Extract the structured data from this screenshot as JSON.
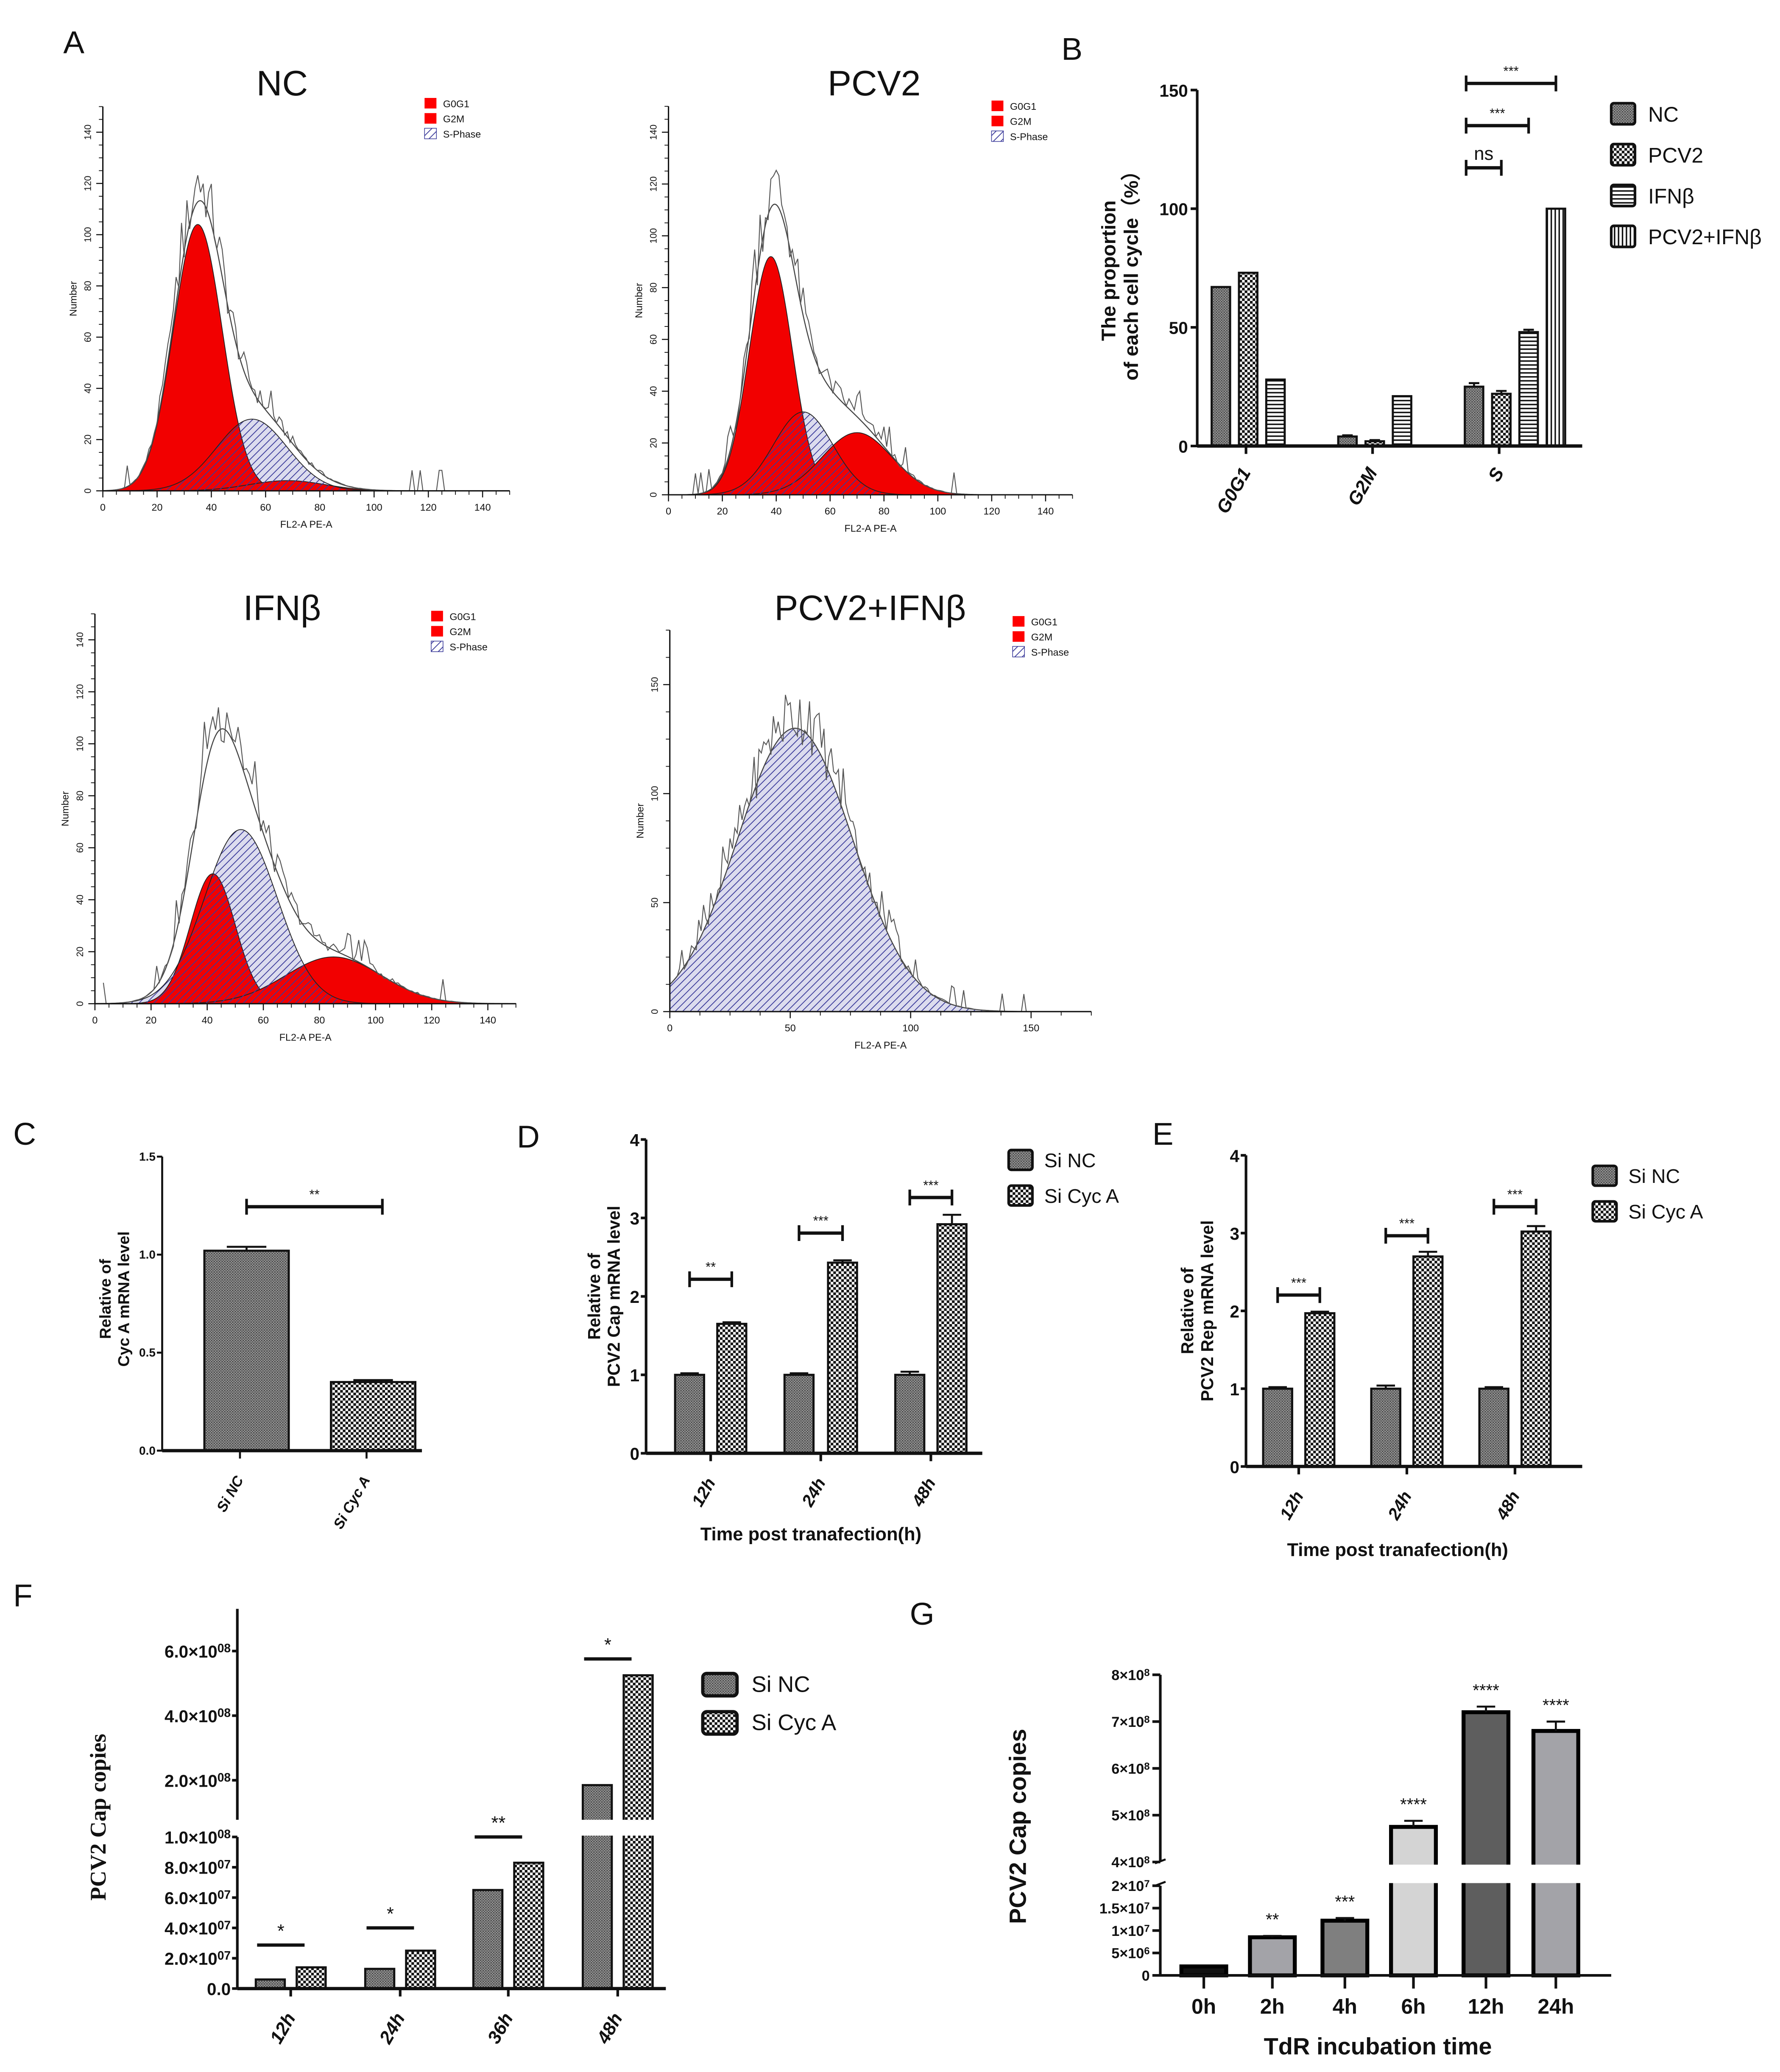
{
  "panel_labels": [
    "A",
    "B",
    "C",
    "D",
    "E",
    "F",
    "G"
  ],
  "chart_data": [
    {
      "id": "A-NC",
      "type": "area",
      "title": "NC",
      "xlabel": "FL2-A PE-A",
      "ylabel": "Number",
      "xlim": [
        0,
        150
      ],
      "ylim": [
        0,
        150
      ],
      "xticks": [
        0,
        20,
        40,
        60,
        80,
        100,
        120,
        140
      ],
      "yticks": [
        0,
        20,
        40,
        60,
        80,
        100,
        120,
        140
      ],
      "legend": [
        {
          "label": "G0G1",
          "fill": "#ff0000"
        },
        {
          "label": "G2M",
          "fill": "#ff0000"
        },
        {
          "label": "S-Phase",
          "fill": "hatch"
        }
      ],
      "components": [
        {
          "name": "S-Phase",
          "mean": 55,
          "sd": 13,
          "peak": 28
        },
        {
          "name": "G0G1",
          "mean": 35,
          "sd": 9,
          "peak": 104
        },
        {
          "name": "G2M",
          "mean": 68,
          "sd": 14,
          "peak": 4
        }
      ]
    },
    {
      "id": "A-PCV2",
      "type": "area",
      "title": "PCV2",
      "xlabel": "FL2-A PE-A",
      "ylabel": "Number",
      "xlim": [
        0,
        150
      ],
      "ylim": [
        0,
        150
      ],
      "xticks": [
        0,
        20,
        40,
        60,
        80,
        100,
        120,
        140
      ],
      "yticks": [
        0,
        20,
        40,
        60,
        80,
        100,
        120,
        140
      ],
      "legend": [
        {
          "label": "G0G1",
          "fill": "#ff0000"
        },
        {
          "label": "G2M",
          "fill": "#ff0000"
        },
        {
          "label": "S-Phase",
          "fill": "hatch"
        }
      ],
      "components": [
        {
          "name": "S-Phase",
          "mean": 50,
          "sd": 11,
          "peak": 32
        },
        {
          "name": "G0G1",
          "mean": 38,
          "sd": 8,
          "peak": 92
        },
        {
          "name": "G2M",
          "mean": 70,
          "sd": 13,
          "peak": 24
        }
      ]
    },
    {
      "id": "A-IFNb",
      "type": "area",
      "title": "IFNβ",
      "xlabel": "FL2-A PE-A",
      "ylabel": "Number",
      "xlim": [
        0,
        150
      ],
      "ylim": [
        0,
        150
      ],
      "xticks": [
        0,
        20,
        40,
        60,
        80,
        100,
        120,
        140
      ],
      "yticks": [
        0,
        20,
        40,
        60,
        80,
        100,
        120,
        140
      ],
      "legend": [
        {
          "label": "G0G1",
          "fill": "#ff0000"
        },
        {
          "label": "G2M",
          "fill": "#ff0000"
        },
        {
          "label": "S-Phase",
          "fill": "hatch"
        }
      ],
      "components": [
        {
          "name": "S-Phase",
          "mean": 52,
          "sd": 13,
          "peak": 67
        },
        {
          "name": "G0G1",
          "mean": 42,
          "sd": 8,
          "peak": 50
        },
        {
          "name": "G2M",
          "mean": 85,
          "sd": 17,
          "peak": 18
        }
      ]
    },
    {
      "id": "A-PCV2-IFNb",
      "type": "area",
      "title": "PCV2+IFNβ",
      "xlabel": "FL2-A PE-A",
      "ylabel": "Number",
      "xlim": [
        0,
        175
      ],
      "ylim": [
        0,
        175
      ],
      "xticks": [
        0,
        50,
        100,
        150
      ],
      "yticks": [
        0,
        50,
        100,
        150
      ],
      "legend": [
        {
          "label": "G0G1",
          "fill": "#ff0000"
        },
        {
          "label": "G2M",
          "fill": "#ff0000"
        },
        {
          "label": "S-Phase",
          "fill": "hatch"
        }
      ],
      "components": [
        {
          "name": "S-Phase",
          "mean": 52,
          "sd": 24,
          "peak": 130
        }
      ]
    },
    {
      "id": "B",
      "type": "bar",
      "categories": [
        "G0G1",
        "G2M",
        "S"
      ],
      "series": [
        {
          "name": "NC",
          "pattern": "dense",
          "values": [
            67,
            4,
            25
          ],
          "errors": [
            0,
            0.5,
            1.5
          ]
        },
        {
          "name": "PCV2",
          "pattern": "checker",
          "values": [
            73,
            2,
            22
          ],
          "errors": [
            0,
            0.5,
            1.2
          ]
        },
        {
          "name": "IFNβ",
          "pattern": "hlines",
          "values": [
            28,
            21,
            48
          ],
          "errors": [
            0,
            0,
            1
          ]
        },
        {
          "name": "PCV2+IFNβ",
          "pattern": "vlines",
          "values": [
            null,
            null,
            100
          ],
          "errors": [
            0,
            0,
            0
          ]
        }
      ],
      "ylabel_lines": [
        "The proportion",
        "of each cell cycle（%）"
      ],
      "ylim": [
        0,
        150
      ],
      "yticks": [
        0,
        50,
        100,
        150
      ],
      "significance": [
        {
          "category": "S",
          "from": "NC",
          "to": "PCV2+IFNβ",
          "label": "***"
        },
        {
          "category": "S",
          "from": "NC",
          "to": "IFNβ",
          "label": "***"
        },
        {
          "category": "S",
          "from": "NC",
          "to": "PCV2",
          "label": "ns"
        }
      ]
    },
    {
      "id": "C",
      "type": "bar",
      "categories": [
        "Si NC",
        "Si Cyc A"
      ],
      "values": [
        1.02,
        0.35
      ],
      "errors": [
        0.02,
        0.01
      ],
      "patterns": [
        "dense",
        "checker"
      ],
      "ylabel_lines": [
        "Relative of",
        "Cyc A mRNA level"
      ],
      "ylim": [
        0,
        1.5
      ],
      "yticks": [
        {
          "v": 0,
          "label": "0.0"
        },
        {
          "v": 0.5,
          "label": "0.5"
        },
        {
          "v": 1,
          "label": "1.0"
        },
        {
          "v": 1.5,
          "label": "1.5"
        }
      ],
      "significance": [
        {
          "label": "**"
        }
      ]
    },
    {
      "id": "D",
      "type": "bar",
      "categories": [
        "12h",
        "24h",
        "48h"
      ],
      "series": [
        {
          "name": "Si NC",
          "pattern": "dense",
          "values": [
            1,
            1,
            1
          ],
          "errors": [
            0.02,
            0.02,
            0.04
          ]
        },
        {
          "name": "Si Cyc A",
          "pattern": "checker",
          "values": [
            1.65,
            2.43,
            2.92
          ],
          "errors": [
            0.02,
            0.03,
            0.12
          ]
        }
      ],
      "significance": [
        "**",
        "***",
        "***"
      ],
      "ylabel_lines": [
        "Relative of",
        "PCV2 Cap mRNA level"
      ],
      "xlabel": "Time post tranafection(h)",
      "ylim": [
        0,
        4
      ],
      "yticks": [
        0,
        1,
        2,
        3,
        4
      ]
    },
    {
      "id": "E",
      "type": "bar",
      "categories": [
        "12h",
        "24h",
        "48h"
      ],
      "series": [
        {
          "name": "Si NC",
          "pattern": "dense",
          "values": [
            1,
            1,
            1
          ],
          "errors": [
            0.02,
            0.04,
            0.02
          ]
        },
        {
          "name": "Si Cyc A",
          "pattern": "checker",
          "values": [
            1.97,
            2.7,
            3.02
          ],
          "errors": [
            0.02,
            0.06,
            0.07
          ]
        }
      ],
      "significance": [
        "***",
        "***",
        "***"
      ],
      "ylabel_lines": [
        "Relative of",
        "PCV2 Rep mRNA level"
      ],
      "xlabel": "Time post tranafection(h)",
      "ylim": [
        0,
        4
      ],
      "yticks": [
        0,
        1,
        2,
        3,
        4
      ]
    },
    {
      "id": "F",
      "type": "bar",
      "categories": [
        "12h",
        "24h",
        "36h",
        "48h"
      ],
      "series": [
        {
          "name": "Si NC",
          "pattern": "dense",
          "values": [
            6000000,
            13000000,
            65000000,
            185000000
          ]
        },
        {
          "name": "Si Cyc A",
          "pattern": "checker",
          "values": [
            14000000,
            25000000,
            83000000,
            525000000
          ]
        }
      ],
      "significance": [
        "*",
        "*",
        "**",
        "*"
      ],
      "ylabel": "PCV2 Cap copies",
      "axis_break": [
        100000000,
        200000000
      ],
      "yticks": [
        {
          "v": 0,
          "label": "0.0",
          "exp": ""
        },
        {
          "v": 20000000,
          "label": "2.0×10",
          "exp": "07"
        },
        {
          "v": 40000000,
          "label": "4.0×10",
          "exp": "07"
        },
        {
          "v": 60000000,
          "label": "6.0×10",
          "exp": "07"
        },
        {
          "v": 80000000,
          "label": "8.0×10",
          "exp": "07"
        },
        {
          "v": 100000000,
          "label": "1.0×10",
          "exp": "08"
        },
        {
          "v": 200000000,
          "label": "2.0×10",
          "exp": "08"
        },
        {
          "v": 400000000,
          "label": "4.0×10",
          "exp": "08"
        },
        {
          "v": 600000000,
          "label": "6.0×10",
          "exp": "08"
        }
      ]
    },
    {
      "id": "G",
      "type": "bar",
      "categories": [
        "0h",
        "2h",
        "4h",
        "6h",
        "12h",
        "24h"
      ],
      "values": [
        2000000,
        8500000,
        12200000,
        475000000,
        720000000,
        680000000
      ],
      "errors": [
        0,
        300000,
        600000,
        13000000,
        12000000,
        20000000
      ],
      "colors": [
        "#111111",
        "#a3a3a8",
        "#7f7f7f",
        "#d4d4d4",
        "#5e5e5e",
        "#a3a3a8"
      ],
      "significance": [
        "",
        "**",
        "***",
        "****",
        "****",
        "****"
      ],
      "ylabel": "PCV2 Cap copies",
      "xlabel": "TdR incubation time",
      "axis_break": [
        20000000,
        400000000
      ],
      "yticks": [
        {
          "v": 0,
          "label": "0",
          "exp": ""
        },
        {
          "v": 5000000,
          "label": "5×10",
          "exp": "6"
        },
        {
          "v": 10000000,
          "label": "1×10",
          "exp": "7"
        },
        {
          "v": 15000000,
          "label": "1.5×10",
          "exp": "7"
        },
        {
          "v": 20000000,
          "label": "2×10",
          "exp": "7"
        },
        {
          "v": 400000000,
          "label": "4×10",
          "exp": "8"
        },
        {
          "v": 500000000,
          "label": "5×10",
          "exp": "8"
        },
        {
          "v": 600000000,
          "label": "6×10",
          "exp": "8"
        },
        {
          "v": 700000000,
          "label": "7×10",
          "exp": "8"
        },
        {
          "v": 800000000,
          "label": "8×10",
          "exp": "8"
        }
      ]
    }
  ]
}
